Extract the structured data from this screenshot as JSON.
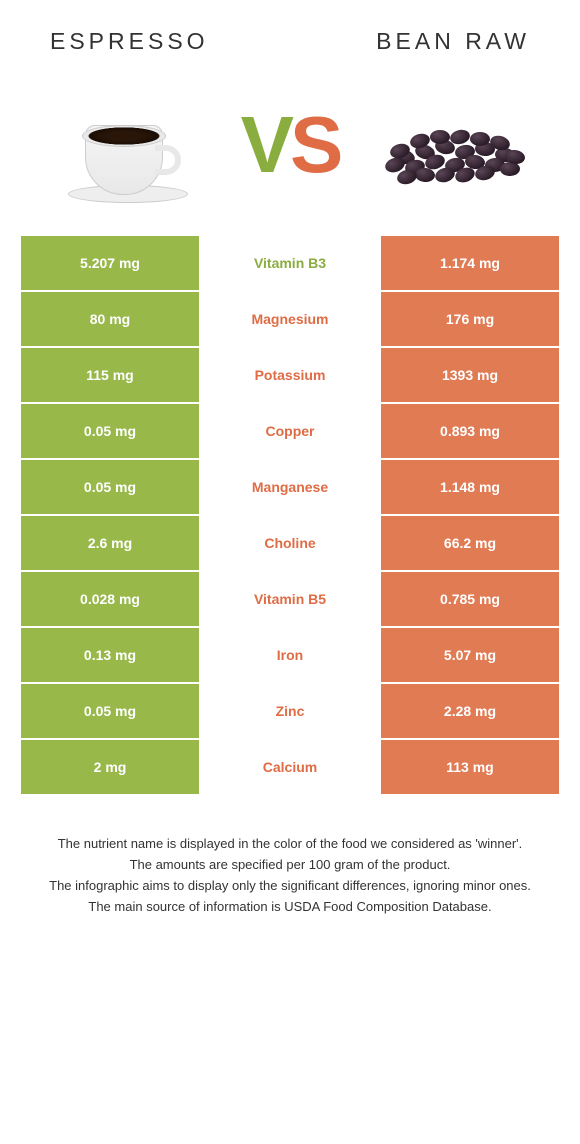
{
  "colors": {
    "left": "#98b84a",
    "right": "#e07b54",
    "left_text": "#8aad3f",
    "right_text": "#df6c45",
    "row_left_bg": "#98b84a",
    "row_right_bg": "#e07b54",
    "background": "#ffffff"
  },
  "header": {
    "left": "ESPRESSO",
    "right": "BEAN RAW"
  },
  "vs": {
    "v": "V",
    "s": "S"
  },
  "table": {
    "rows": [
      {
        "left": "5.207 mg",
        "name": "Vitamin B3",
        "right": "1.174 mg",
        "winner": "left"
      },
      {
        "left": "80 mg",
        "name": "Magnesium",
        "right": "176 mg",
        "winner": "right"
      },
      {
        "left": "115 mg",
        "name": "Potassium",
        "right": "1393 mg",
        "winner": "right"
      },
      {
        "left": "0.05 mg",
        "name": "Copper",
        "right": "0.893 mg",
        "winner": "right"
      },
      {
        "left": "0.05 mg",
        "name": "Manganese",
        "right": "1.148 mg",
        "winner": "right"
      },
      {
        "left": "2.6 mg",
        "name": "Choline",
        "right": "66.2 mg",
        "winner": "right"
      },
      {
        "left": "0.028 mg",
        "name": "Vitamin B5",
        "right": "0.785 mg",
        "winner": "right"
      },
      {
        "left": "0.13 mg",
        "name": "Iron",
        "right": "5.07 mg",
        "winner": "right"
      },
      {
        "left": "0.05 mg",
        "name": "Zinc",
        "right": "2.28 mg",
        "winner": "right"
      },
      {
        "left": "2 mg",
        "name": "Calcium",
        "right": "113 mg",
        "winner": "right"
      }
    ]
  },
  "footnotes": {
    "l1": "The nutrient name is displayed in the color of the food we considered as 'winner'.",
    "l2": "The amounts are specified per 100 gram of the product.",
    "l3": "The infographic aims to display only the significant differences, ignoring minor ones.",
    "l4": "The main source of information is USDA Food Composition Database."
  }
}
